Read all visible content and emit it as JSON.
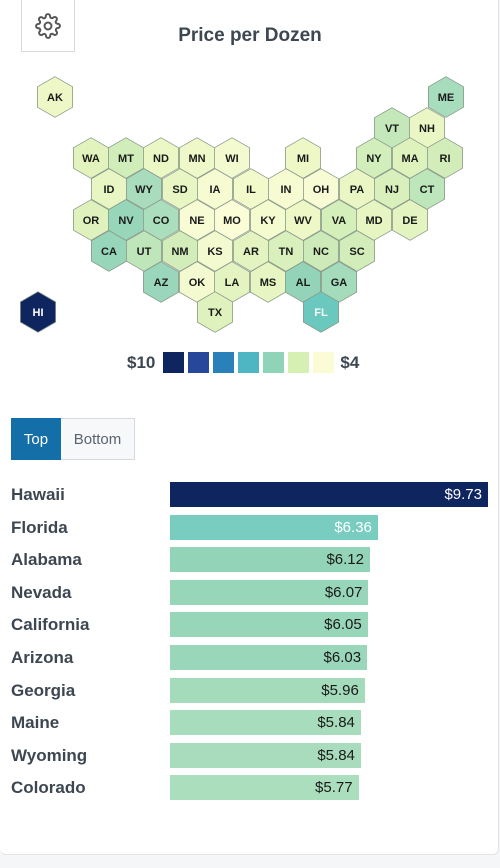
{
  "title": "Price per Dozen",
  "legend": {
    "max_label": "$10",
    "min_label": "$4",
    "swatches": [
      "#0f2560",
      "#27479a",
      "#2a80b8",
      "#4eb5c2",
      "#8fd3b8",
      "#d6f0b4",
      "#fbfcd5"
    ]
  },
  "tabs": [
    "Top",
    "Bottom"
  ],
  "chart_data": [
    {
      "type": "map",
      "title": "Price per Dozen",
      "states": [
        {
          "abbr": "AK",
          "fill": "#eef8c6"
        },
        {
          "abbr": "ME",
          "fill": "#a7dcbc"
        },
        {
          "abbr": "VT",
          "fill": "#c5e8ba"
        },
        {
          "abbr": "NH",
          "fill": "#eaf6c4"
        },
        {
          "abbr": "WA",
          "fill": "#e3f3be"
        },
        {
          "abbr": "MT",
          "fill": "#d1edb9"
        },
        {
          "abbr": "ND",
          "fill": "#ecf7c6"
        },
        {
          "abbr": "MN",
          "fill": "#eef8c8"
        },
        {
          "abbr": "WI",
          "fill": "#f4fad0"
        },
        {
          "abbr": "MI",
          "fill": "#eef8c7"
        },
        {
          "abbr": "NY",
          "fill": "#d2eeba"
        },
        {
          "abbr": "MA",
          "fill": "#ddf2bc"
        },
        {
          "abbr": "RI",
          "fill": "#d3edba"
        },
        {
          "abbr": "ID",
          "fill": "#e7f6c3"
        },
        {
          "abbr": "WY",
          "fill": "#a9dcbc"
        },
        {
          "abbr": "SD",
          "fill": "#e8f6c4"
        },
        {
          "abbr": "IA",
          "fill": "#f6fbd1"
        },
        {
          "abbr": "IL",
          "fill": "#f2f9cb"
        },
        {
          "abbr": "IN",
          "fill": "#f7fbd1"
        },
        {
          "abbr": "OH",
          "fill": "#f8fcd4"
        },
        {
          "abbr": "PA",
          "fill": "#eaf6c4"
        },
        {
          "abbr": "NJ",
          "fill": "#d9f0bc"
        },
        {
          "abbr": "CT",
          "fill": "#bde6bb"
        },
        {
          "abbr": "OR",
          "fill": "#dff2bd"
        },
        {
          "abbr": "NV",
          "fill": "#98d6ba"
        },
        {
          "abbr": "CO",
          "fill": "#abdebc"
        },
        {
          "abbr": "NE",
          "fill": "#f8fcd4"
        },
        {
          "abbr": "MO",
          "fill": "#fbfdd6"
        },
        {
          "abbr": "KY",
          "fill": "#f3fbcf"
        },
        {
          "abbr": "WV",
          "fill": "#eef8c7"
        },
        {
          "abbr": "VA",
          "fill": "#d5efba"
        },
        {
          "abbr": "MD",
          "fill": "#e6f5c2"
        },
        {
          "abbr": "DE",
          "fill": "#e4f4c0"
        },
        {
          "abbr": "CA",
          "fill": "#98d6ba"
        },
        {
          "abbr": "UT",
          "fill": "#bfe6bb"
        },
        {
          "abbr": "NM",
          "fill": "#d2edb9"
        },
        {
          "abbr": "KS",
          "fill": "#f3fad0"
        },
        {
          "abbr": "AR",
          "fill": "#e4f4c0"
        },
        {
          "abbr": "TN",
          "fill": "#d9f0bc"
        },
        {
          "abbr": "NC",
          "fill": "#cdebb9"
        },
        {
          "abbr": "SC",
          "fill": "#d3edba"
        },
        {
          "abbr": "AZ",
          "fill": "#99d6ba"
        },
        {
          "abbr": "OK",
          "fill": "#f3fad0"
        },
        {
          "abbr": "LA",
          "fill": "#e4f4c0"
        },
        {
          "abbr": "MS",
          "fill": "#e6f5c2"
        },
        {
          "abbr": "AL",
          "fill": "#93d4b9"
        },
        {
          "abbr": "GA",
          "fill": "#a3dbbb"
        },
        {
          "abbr": "HI",
          "fill": "#0f2560"
        },
        {
          "abbr": "TX",
          "fill": "#dff2bd"
        },
        {
          "abbr": "FL",
          "fill": "#6ac8be"
        }
      ]
    },
    {
      "type": "bar",
      "categories": [
        "Hawaii",
        "Florida",
        "Alabama",
        "Nevada",
        "California",
        "Arizona",
        "Georgia",
        "Maine",
        "Wyoming",
        "Colorado"
      ],
      "values": [
        9.73,
        6.36,
        6.12,
        6.07,
        6.05,
        6.03,
        5.96,
        5.84,
        5.84,
        5.77
      ],
      "value_labels": [
        "$9.73",
        "$6.36",
        "$6.12",
        "$6.07",
        "$6.05",
        "$6.03",
        "$5.96",
        "$5.84",
        "$5.84",
        "$5.77"
      ],
      "colors": [
        "#0f2560",
        "#78cdc0",
        "#93d4b9",
        "#98d6ba",
        "#98d6ba",
        "#99d6ba",
        "#a3dbbb",
        "#a7dcbc",
        "#a9dcbc",
        "#abdebc"
      ],
      "label_colors": [
        "#ffffff",
        "#ffffff",
        "#1a1a1a",
        "#1a1a1a",
        "#1a1a1a",
        "#1a1a1a",
        "#1a1a1a",
        "#1a1a1a",
        "#1a1a1a",
        "#1a1a1a"
      ]
    }
  ]
}
